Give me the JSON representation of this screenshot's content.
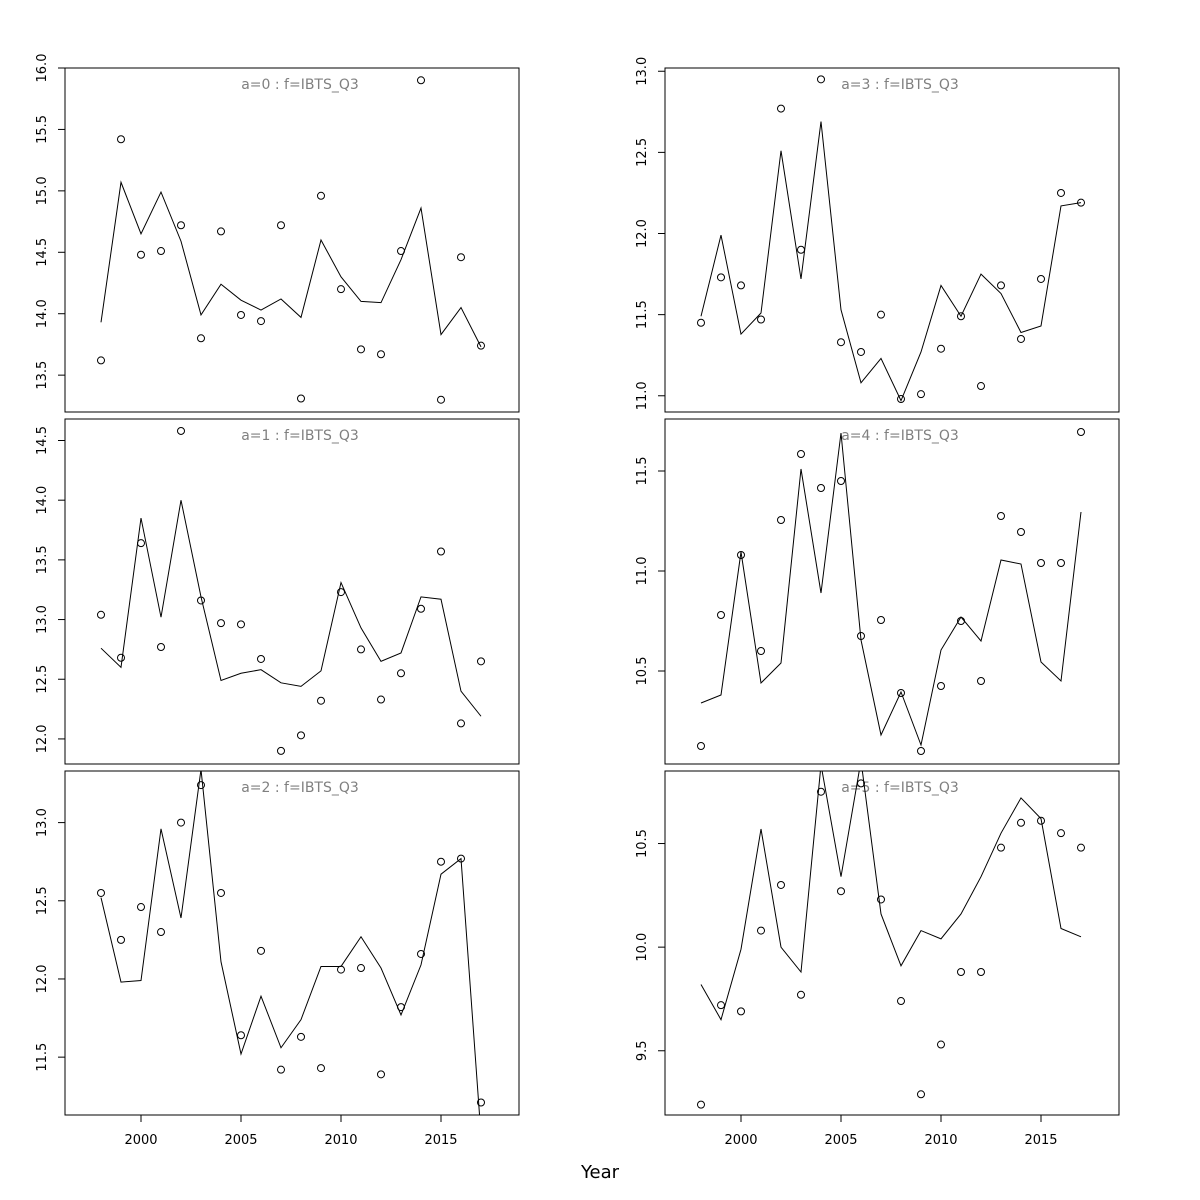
{
  "xlabel": "Year",
  "chart_data": [
    {
      "type": "line",
      "title": "a=0 : f=IBTS_Q3",
      "x": [
        1998,
        1999,
        2000,
        2001,
        2002,
        2003,
        2004,
        2005,
        2006,
        2007,
        2008,
        2009,
        2010,
        2011,
        2012,
        2013,
        2014,
        2015,
        2016,
        2017
      ],
      "series": [
        {
          "style": "points",
          "color": "#000000",
          "values": [
            13.62,
            15.42,
            14.48,
            14.51,
            14.72,
            13.8,
            14.67,
            13.99,
            13.94,
            14.72,
            13.31,
            14.96,
            14.2,
            13.71,
            13.67,
            14.51,
            15.9,
            13.3,
            14.46,
            13.74
          ]
        },
        {
          "style": "line",
          "color": "#000000",
          "values": [
            13.93,
            15.07,
            14.65,
            14.99,
            14.59,
            13.99,
            14.24,
            14.11,
            14.03,
            14.12,
            13.97,
            14.6,
            14.3,
            14.1,
            14.09,
            14.44,
            14.86,
            13.83,
            14.05,
            13.73
          ]
        }
      ],
      "xlim": [
        1996.2,
        2018.9
      ],
      "ylim": [
        13.2,
        16.0
      ],
      "yticks": [
        13.5,
        {
          "value": 14,
          "label": "14.0"
        },
        14.5,
        {
          "value": 15,
          "label": "15.0"
        },
        15.5,
        {
          "value": 16,
          "label": "16.0"
        }
      ]
    },
    {
      "type": "line",
      "title": "a=1 : f=IBTS_Q3",
      "x": [
        1998,
        1999,
        2000,
        2001,
        2002,
        2003,
        2004,
        2005,
        2006,
        2007,
        2008,
        2009,
        2010,
        2011,
        2012,
        2013,
        2014,
        2015,
        2016,
        2017
      ],
      "series": [
        {
          "style": "points",
          "color": "#000000",
          "values": [
            13.04,
            12.68,
            13.64,
            12.77,
            14.58,
            13.16,
            12.97,
            12.96,
            12.67,
            11.9,
            12.03,
            12.32,
            13.23,
            12.75,
            12.33,
            12.55,
            13.09,
            13.57,
            12.13,
            12.65
          ]
        },
        {
          "style": "line",
          "color": "#000000",
          "values": [
            12.76,
            12.6,
            13.85,
            13.02,
            14.0,
            13.19,
            12.49,
            12.55,
            12.58,
            12.47,
            12.44,
            12.57,
            13.31,
            12.93,
            12.65,
            12.72,
            13.19,
            13.17,
            12.4,
            12.19
          ]
        }
      ],
      "xlim": [
        1996.2,
        2018.9
      ],
      "ylim": [
        11.79,
        14.68
      ],
      "yticks": [
        {
          "value": 12,
          "label": "12.0"
        },
        12.5,
        {
          "value": 13,
          "label": "13.0"
        },
        13.5,
        {
          "value": 14,
          "label": "14.0"
        },
        14.5
      ]
    },
    {
      "type": "line",
      "title": "a=2 : f=IBTS_Q3",
      "x": [
        1998,
        1999,
        2000,
        2001,
        2002,
        2003,
        2004,
        2005,
        2006,
        2007,
        2008,
        2009,
        2010,
        2011,
        2012,
        2013,
        2014,
        2015,
        2016,
        2017
      ],
      "series": [
        {
          "style": "points",
          "color": "#000000",
          "values": [
            12.55,
            12.25,
            12.46,
            12.3,
            13.0,
            13.24,
            12.55,
            11.64,
            12.18,
            11.42,
            11.63,
            11.43,
            12.06,
            12.07,
            11.39,
            11.82,
            12.16,
            12.75,
            12.77,
            11.21
          ]
        },
        {
          "style": "line",
          "color": "#000000",
          "values": [
            12.52,
            11.98,
            11.99,
            12.96,
            12.39,
            13.34,
            12.11,
            11.52,
            11.89,
            11.56,
            11.74,
            12.08,
            12.08,
            12.27,
            12.07,
            11.77,
            12.09,
            12.67,
            12.77,
            11.0
          ]
        }
      ],
      "xlim": [
        1996.2,
        2018.9
      ],
      "ylim": [
        11.13,
        13.33
      ],
      "yticks": [
        11.5,
        {
          "value": 12,
          "label": "12.0"
        },
        12.5,
        {
          "value": 13,
          "label": "13.0"
        }
      ],
      "xticks": [
        2000,
        2005,
        2010,
        2015
      ]
    },
    {
      "type": "line",
      "title": "a=3 : f=IBTS_Q3",
      "x": [
        1998,
        1999,
        2000,
        2001,
        2002,
        2003,
        2004,
        2005,
        2006,
        2007,
        2008,
        2009,
        2010,
        2011,
        2012,
        2013,
        2014,
        2015,
        2016,
        2017
      ],
      "series": [
        {
          "style": "points",
          "color": "#000000",
          "values": [
            11.45,
            11.73,
            11.68,
            11.47,
            12.77,
            11.9,
            12.95,
            11.33,
            11.27,
            11.5,
            10.98,
            11.01,
            11.29,
            11.49,
            11.06,
            11.68,
            11.35,
            11.72,
            12.25,
            12.19
          ]
        },
        {
          "style": "line",
          "color": "#000000",
          "values": [
            11.49,
            11.99,
            11.38,
            11.51,
            12.51,
            11.72,
            12.69,
            11.53,
            11.08,
            11.23,
            10.97,
            11.27,
            11.68,
            11.49,
            11.75,
            11.63,
            11.39,
            11.43,
            12.17,
            12.19
          ]
        }
      ],
      "xlim": [
        1996.2,
        2018.9
      ],
      "ylim": [
        10.9,
        13.02
      ],
      "yticks": [
        {
          "value": 11,
          "label": "11.0"
        },
        11.5,
        {
          "value": 12,
          "label": "12.0"
        },
        12.5,
        {
          "value": 13,
          "label": "13.0"
        }
      ]
    },
    {
      "type": "line",
      "title": "a=4 : f=IBTS_Q3",
      "x": [
        1998,
        1999,
        2000,
        2001,
        2002,
        2003,
        2004,
        2005,
        2006,
        2007,
        2008,
        2009,
        2010,
        2011,
        2012,
        2013,
        2014,
        2015,
        2016,
        2017
      ],
      "series": [
        {
          "style": "points",
          "color": "#000000",
          "values": [
            10.125,
            10.78,
            11.08,
            10.6,
            11.255,
            11.585,
            11.415,
            11.45,
            10.675,
            10.755,
            10.39,
            10.1,
            10.425,
            10.75,
            10.45,
            11.275,
            11.195,
            11.04,
            11.04,
            11.695
          ]
        },
        {
          "style": "line",
          "color": "#000000",
          "values": [
            10.34,
            10.38,
            11.095,
            10.44,
            10.54,
            11.51,
            10.89,
            11.69,
            10.655,
            10.18,
            10.395,
            10.13,
            10.605,
            10.77,
            10.65,
            11.055,
            11.035,
            10.545,
            10.45,
            11.295
          ]
        }
      ],
      "xlim": [
        1996.2,
        2018.9
      ],
      "ylim": [
        10.035,
        11.76
      ],
      "yticks": [
        10.5,
        {
          "value": 11,
          "label": "11.0"
        },
        11.5
      ]
    },
    {
      "type": "line",
      "title": "a=5 : f=IBTS_Q3",
      "x": [
        1998,
        1999,
        2000,
        2001,
        2002,
        2003,
        2004,
        2005,
        2006,
        2007,
        2008,
        2009,
        2010,
        2011,
        2012,
        2013,
        2014,
        2015,
        2016,
        2017
      ],
      "series": [
        {
          "style": "points",
          "color": "#000000",
          "values": [
            9.24,
            9.72,
            9.69,
            10.08,
            10.3,
            9.77,
            10.75,
            10.27,
            10.79,
            10.23,
            9.74,
            9.29,
            9.53,
            9.88,
            9.88,
            10.48,
            10.6,
            10.61,
            10.55,
            10.48
          ]
        },
        {
          "style": "line",
          "color": "#000000",
          "values": [
            9.82,
            9.65,
            9.99,
            10.57,
            10.0,
            9.88,
            10.88,
            10.34,
            10.9,
            10.16,
            9.91,
            10.08,
            10.04,
            10.16,
            10.34,
            10.55,
            10.72,
            10.62,
            10.09,
            10.05
          ]
        }
      ],
      "xlim": [
        1996.2,
        2018.9
      ],
      "ylim": [
        9.19,
        10.85
      ],
      "yticks": [
        9.5,
        {
          "value": 10,
          "label": "10.0"
        },
        10.5
      ],
      "xticks": [
        2000,
        2005,
        2010,
        2015
      ]
    }
  ]
}
